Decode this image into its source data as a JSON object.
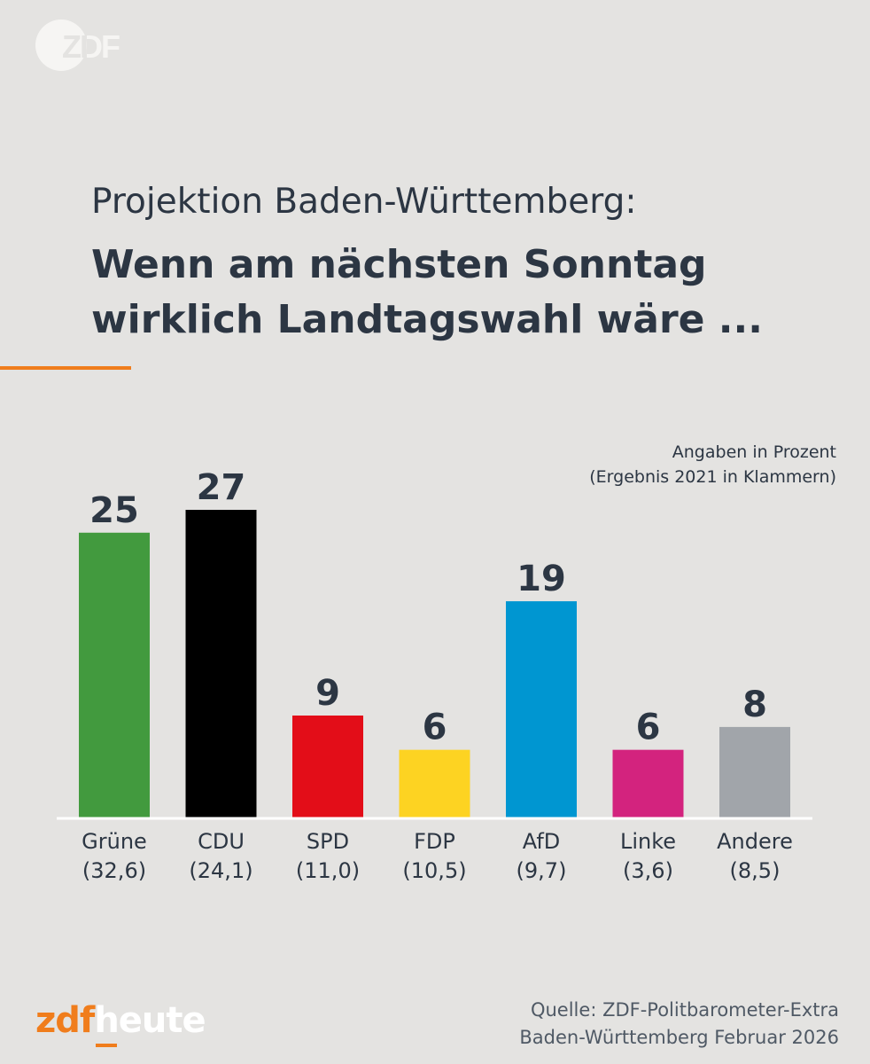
{
  "logo": {
    "text": "ZDF"
  },
  "header": {
    "subtitle": "Projektion Baden-Württemberg:",
    "title_line1": "Wenn am nächsten Sonntag",
    "title_line2": "wirklich Landtagswahl wäre ..."
  },
  "note": {
    "line1": "Angaben in Prozent",
    "line2": "(Ergebnis 2021 in Klammern)"
  },
  "colors": {
    "accent": "#f07d1c",
    "text": "#2c3643",
    "background": "#e4e3e1"
  },
  "chart_data": {
    "type": "bar",
    "title": "Wenn am nächsten Sonntag wirklich Landtagswahl wäre ...",
    "subtitle": "Projektion Baden-Württemberg:",
    "xlabel": "",
    "ylabel": "",
    "ylim": [
      0,
      27
    ],
    "grid": false,
    "categories": [
      "Grüne",
      "CDU",
      "SPD",
      "FDP",
      "AfD",
      "Linke",
      "Andere"
    ],
    "values": [
      25,
      27,
      9,
      6,
      19,
      6,
      8
    ],
    "previous_labels": [
      "(32,6)",
      "(24,1)",
      "(11,0)",
      "(10,5)",
      "(9,7)",
      "(3,6)",
      "(8,5)"
    ],
    "bar_colors": [
      "#429a3e",
      "#000000",
      "#e30d18",
      "#fdd322",
      "#0096d1",
      "#d3237e",
      "#a1a5aa"
    ]
  },
  "source": {
    "line1": "Quelle: ZDF-Politbarometer-Extra",
    "line2": "Baden-Württemberg Februar 2026"
  },
  "brand": {
    "part1": "zdf",
    "part2": "heute"
  }
}
